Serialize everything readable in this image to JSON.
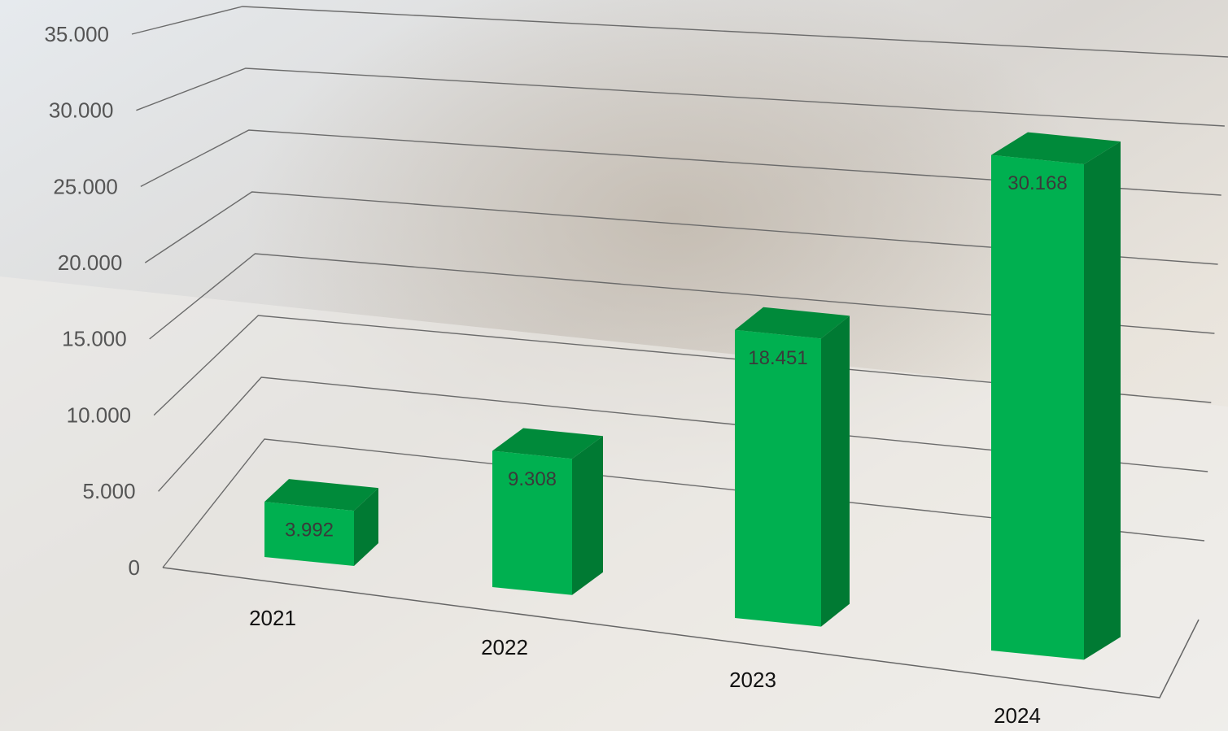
{
  "chart_data": {
    "type": "bar3d",
    "categories": [
      "2021",
      "2022",
      "2023",
      "2024"
    ],
    "values": [
      3992,
      9308,
      18451,
      30168
    ],
    "value_labels": [
      "3.992",
      "9.308",
      "18.451",
      "30.168"
    ],
    "color": "#00b050",
    "ylim": [
      0,
      35000
    ],
    "yticks": [
      0,
      {
        "value": 5000,
        "label": "5.000"
      },
      {
        "value": 10000,
        "label": "10.000"
      },
      {
        "value": 15000,
        "label": "15.000"
      },
      {
        "value": 20000,
        "label": "20.000"
      },
      {
        "value": 25000,
        "label": "25.000"
      },
      {
        "value": 30000,
        "label": "30.000"
      },
      {
        "value": 35000,
        "label": "35.000"
      }
    ],
    "grid": true
  }
}
